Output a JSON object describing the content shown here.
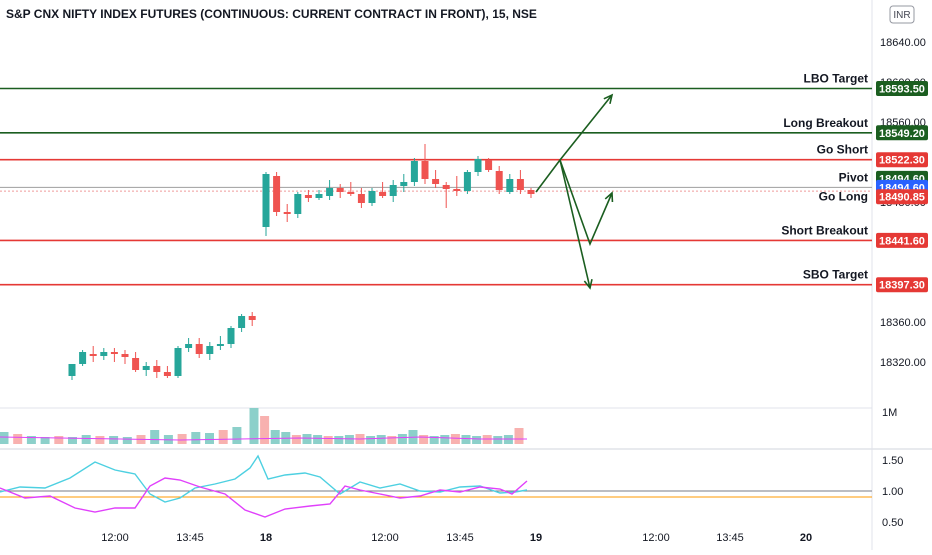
{
  "header": {
    "title": "S&P CNX NIFTY INDEX FUTURES (CONTINUOUS: CURRENT CONTRACT IN FRONT), 15, NSE"
  },
  "currency_button": {
    "label": "INR"
  },
  "chart_data": {
    "type": "candlestick",
    "price_axis": {
      "ticks": [
        18640,
        18600,
        18560,
        18520,
        18480,
        18360,
        18320
      ],
      "tick_labels": [
        "18640.00",
        "18600.00",
        "18560.00",
        "18520.00",
        "18480.00",
        "18360.00",
        "18320.00"
      ],
      "range": [
        18240,
        18678
      ]
    },
    "time_axis": {
      "labels": [
        "12:00",
        "13:45",
        "18",
        "12:00",
        "13:45",
        "19",
        "12:00",
        "13:45",
        "20"
      ]
    },
    "levels": [
      {
        "label": "LBO Target",
        "value": "18593.50",
        "price": 18593.5,
        "line_color": "#1b5e20",
        "tag_color": "#1b5e20"
      },
      {
        "label": "Long Breakout",
        "value": "18549.20",
        "price": 18549.2,
        "line_color": "#1b5e20",
        "tag_color": "#1b5e20"
      },
      {
        "label": "Go Short",
        "value": "18522.30",
        "price": 18522.3,
        "line_color": "#e53935",
        "tag_color": "#e53935"
      },
      {
        "label": "",
        "value": "18494.60",
        "price": 18503.6,
        "line_color": "",
        "tag_color": "#1b5e20"
      },
      {
        "label": "Pivot",
        "value": "18494.60",
        "price": 18494.6,
        "line_color": "#9e9e9e",
        "tag_color": "#2962ff"
      },
      {
        "label": "Go Long",
        "value": "18490.85",
        "price": 18485.3,
        "line_color": "",
        "tag_color": "#e53935"
      },
      {
        "label": "Short Breakout",
        "value": "18441.60",
        "price": 18441.6,
        "line_color": "#e53935",
        "tag_color": "#e53935"
      },
      {
        "label": "SBO Target",
        "value": "18397.30",
        "price": 18397.3,
        "line_color": "#e53935",
        "tag_color": "#e53935"
      }
    ],
    "candles": [
      [
        18306,
        18318,
        18302,
        18318
      ],
      [
        18318,
        18332,
        18316,
        18330
      ],
      [
        18328,
        18336,
        18320,
        18326
      ],
      [
        18326,
        18334,
        18322,
        18330
      ],
      [
        18330,
        18334,
        18320,
        18328
      ],
      [
        18328,
        18332,
        18318,
        18325
      ],
      [
        18324,
        18330,
        18310,
        18312
      ],
      [
        18312,
        18320,
        18306,
        18316
      ],
      [
        18316,
        18322,
        18304,
        18310
      ],
      [
        18310,
        18316,
        18304,
        18306
      ],
      [
        18306,
        18336,
        18304,
        18334
      ],
      [
        18334,
        18344,
        18330,
        18338
      ],
      [
        18338,
        18344,
        18324,
        18328
      ],
      [
        18328,
        18340,
        18322,
        18336
      ],
      [
        18336,
        18346,
        18332,
        18338
      ],
      [
        18338,
        18356,
        18334,
        18354
      ],
      [
        18354,
        18368,
        18350,
        18366
      ],
      [
        18366,
        18370,
        18356,
        18362
      ],
      [
        18455,
        18510,
        18446,
        18508
      ],
      [
        18506,
        18510,
        18466,
        18470
      ],
      [
        18470,
        18478,
        18460,
        18468
      ],
      [
        18468,
        18490,
        18464,
        18488
      ],
      [
        18487,
        18492,
        18480,
        18484
      ],
      [
        18484,
        18492,
        18482,
        18488
      ],
      [
        18486,
        18502,
        18482,
        18494
      ],
      [
        18494,
        18498,
        18484,
        18490
      ],
      [
        18490,
        18500,
        18486,
        18488
      ],
      [
        18488,
        18494,
        18474,
        18479
      ],
      [
        18479,
        18494,
        18476,
        18491
      ],
      [
        18490,
        18500,
        18484,
        18486
      ],
      [
        18486,
        18502,
        18480,
        18497
      ],
      [
        18496,
        18508,
        18490,
        18500
      ],
      [
        18500,
        18524,
        18496,
        18521
      ],
      [
        18521,
        18538,
        18498,
        18503
      ],
      [
        18503,
        18512,
        18494,
        18498
      ],
      [
        18497,
        18500,
        18474,
        18493
      ],
      [
        18493,
        18506,
        18486,
        18491
      ],
      [
        18491,
        18512,
        18488,
        18510
      ],
      [
        18510,
        18526,
        18506,
        18523
      ],
      [
        18522,
        18524,
        18510,
        18512
      ],
      [
        18511,
        18516,
        18488,
        18492
      ],
      [
        18490,
        18508,
        18488,
        18503
      ],
      [
        18503,
        18512,
        18488,
        18492
      ],
      [
        18492,
        18494,
        18484,
        18488
      ]
    ],
    "volume": {
      "label": "1M"
    },
    "oscillator": {
      "ticks": [
        1.5,
        1.0,
        0.5
      ],
      "tick_labels": [
        "1.50",
        "1.00",
        "0.50"
      ]
    },
    "colors": {
      "up": "#26a69a",
      "down": "#ef5350",
      "cyan": "#4dd0e1",
      "magenta": "#e040fb"
    }
  }
}
